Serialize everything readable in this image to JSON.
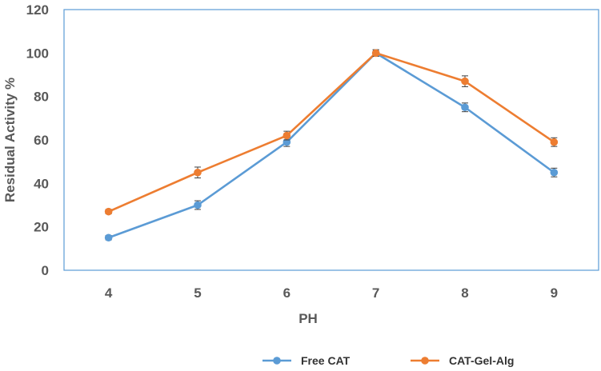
{
  "chart_data": {
    "type": "line",
    "title": "",
    "xlabel": "PH",
    "ylabel": "Residual Activity %",
    "x": [
      4,
      5,
      6,
      7,
      8,
      9
    ],
    "ylim": [
      0,
      120
    ],
    "yticks": [
      0,
      20,
      40,
      60,
      80,
      100,
      120
    ],
    "grid": false,
    "legend_position": "bottom",
    "series": [
      {
        "name": "Free CAT",
        "color": "#5b9bd5",
        "values": [
          15,
          30,
          59,
          100,
          75,
          45
        ],
        "errors": [
          1,
          2,
          2,
          1.5,
          2,
          2
        ]
      },
      {
        "name": "CAT-Gel-Alg",
        "color": "#ed7d31",
        "values": [
          27,
          45,
          62,
          100,
          87,
          59
        ],
        "errors": [
          1,
          2.5,
          2,
          1.5,
          2.5,
          2
        ]
      }
    ]
  }
}
